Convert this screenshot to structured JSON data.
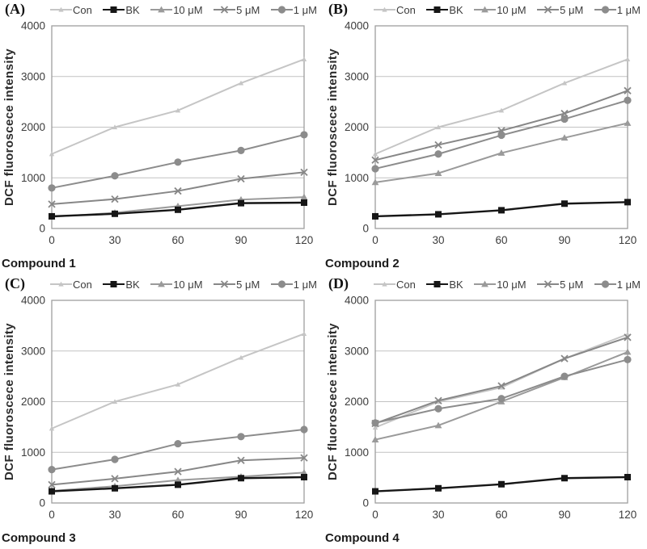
{
  "figure": {
    "ylabel": "DCF fluoroscece intensity",
    "x_ticks": [
      "0",
      "30",
      "60",
      "90",
      "120"
    ],
    "y_ticks": [
      "0",
      "1000",
      "2000",
      "3000",
      "4000"
    ],
    "ylim": [
      0,
      4000
    ],
    "grid": true,
    "legend_position": "top",
    "colors": {
      "axis": "#9e9e9e",
      "grid": "#c2c2c2",
      "text": "#3c3c3c"
    },
    "legend": [
      {
        "label": "Con",
        "color": "#c5c5c5",
        "marker": "triangle-small"
      },
      {
        "label": "BK",
        "color": "#161616",
        "marker": "square"
      },
      {
        "label": "10 μM",
        "color": "#9a9a9a",
        "marker": "triangle"
      },
      {
        "label": "5 μM",
        "color": "#878787",
        "marker": "x"
      },
      {
        "label": "1 μM",
        "color": "#8c8c8c",
        "marker": "circle"
      }
    ]
  },
  "chart_data": [
    {
      "type": "line",
      "panel_label": "(A)",
      "title": "Compound 1",
      "xlabel": "",
      "ylabel": "DCF fluoroscece intensity",
      "x": [
        0,
        30,
        60,
        90,
        120
      ],
      "ylim": [
        0,
        4000
      ],
      "series": [
        {
          "name": "Con",
          "values": [
            1470,
            2000,
            2330,
            2870,
            3340
          ]
        },
        {
          "name": "BK",
          "values": [
            240,
            290,
            370,
            500,
            510
          ]
        },
        {
          "name": "10 μM",
          "values": [
            230,
            310,
            440,
            570,
            620
          ]
        },
        {
          "name": "5 μM",
          "values": [
            480,
            580,
            740,
            980,
            1110
          ]
        },
        {
          "name": "1 μM",
          "values": [
            800,
            1040,
            1310,
            1540,
            1850
          ]
        }
      ]
    },
    {
      "type": "line",
      "panel_label": "(B)",
      "title": "Compound 2",
      "xlabel": "",
      "ylabel": "DCF fluoroscece intensity",
      "x": [
        0,
        30,
        60,
        90,
        120
      ],
      "ylim": [
        0,
        4000
      ],
      "series": [
        {
          "name": "Con",
          "values": [
            1470,
            2000,
            2330,
            2870,
            3340
          ]
        },
        {
          "name": "BK",
          "values": [
            240,
            280,
            360,
            490,
            520
          ]
        },
        {
          "name": "10 μM",
          "values": [
            910,
            1090,
            1490,
            1790,
            2080
          ]
        },
        {
          "name": "5 μM",
          "values": [
            1350,
            1650,
            1930,
            2270,
            2720
          ]
        },
        {
          "name": "1 μM",
          "values": [
            1180,
            1470,
            1840,
            2160,
            2530
          ]
        }
      ]
    },
    {
      "type": "line",
      "panel_label": "(C)",
      "title": "Compound 3",
      "xlabel": "",
      "ylabel": "DCF fluoroscece intensity",
      "x": [
        0,
        30,
        60,
        90,
        120
      ],
      "ylim": [
        0,
        4000
      ],
      "series": [
        {
          "name": "Con",
          "values": [
            1470,
            2000,
            2340,
            2870,
            3340
          ]
        },
        {
          "name": "BK",
          "values": [
            230,
            290,
            360,
            490,
            510
          ]
        },
        {
          "name": "10 μM",
          "values": [
            240,
            330,
            450,
            520,
            600
          ]
        },
        {
          "name": "5 μM",
          "values": [
            360,
            480,
            620,
            840,
            890
          ]
        },
        {
          "name": "1 μM",
          "values": [
            660,
            860,
            1170,
            1310,
            1450
          ]
        }
      ]
    },
    {
      "type": "line",
      "panel_label": "(D)",
      "title": "Compound 4",
      "xlabel": "",
      "ylabel": "DCF fluoroscece intensity",
      "x": [
        0,
        30,
        60,
        90,
        120
      ],
      "ylim": [
        0,
        4000
      ],
      "series": [
        {
          "name": "Con",
          "values": [
            1490,
            2000,
            2280,
            2850,
            3330
          ]
        },
        {
          "name": "BK",
          "values": [
            230,
            290,
            370,
            490,
            510
          ]
        },
        {
          "name": "10 μM",
          "values": [
            1250,
            1530,
            2000,
            2480,
            2980
          ]
        },
        {
          "name": "5 μM",
          "values": [
            1570,
            2020,
            2310,
            2850,
            3270
          ]
        },
        {
          "name": "1 μM",
          "values": [
            1580,
            1860,
            2060,
            2500,
            2830
          ]
        }
      ]
    }
  ]
}
